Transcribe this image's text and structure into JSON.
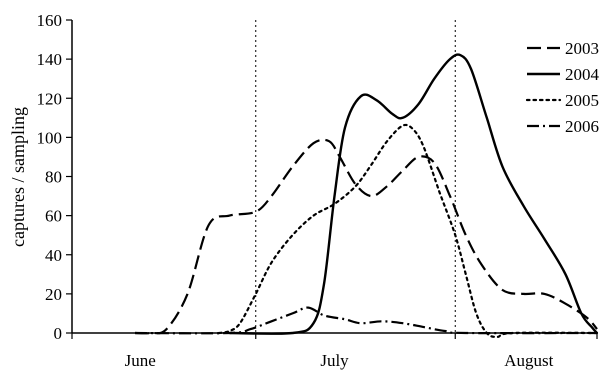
{
  "chart_data": {
    "type": "line",
    "title": "",
    "xlabel": "",
    "ylabel": "captures / sampling",
    "ylim": [
      0,
      160
    ],
    "yticks": [
      0,
      20,
      40,
      60,
      80,
      100,
      120,
      140,
      160
    ],
    "xlim": [
      0,
      100
    ],
    "month_labels": [
      {
        "label": "June",
        "x": 13
      },
      {
        "label": "July",
        "x": 50
      },
      {
        "label": "August",
        "x": 87
      }
    ],
    "month_dividers": [
      35,
      73
    ],
    "grid": false,
    "legend_position": "top-right",
    "series": [
      {
        "name": "2003",
        "style": "long-dash",
        "color": "#000000",
        "points": [
          [
            12,
            0
          ],
          [
            15,
            0
          ],
          [
            18,
            2
          ],
          [
            22,
            20
          ],
          [
            26,
            55
          ],
          [
            30,
            60
          ],
          [
            35,
            62
          ],
          [
            38,
            70
          ],
          [
            42,
            85
          ],
          [
            46,
            97
          ],
          [
            49,
            98
          ],
          [
            51,
            90
          ],
          [
            54,
            76
          ],
          [
            57,
            70
          ],
          [
            60,
            75
          ],
          [
            63,
            83
          ],
          [
            66,
            90
          ],
          [
            69,
            87
          ],
          [
            72,
            70
          ],
          [
            75,
            50
          ],
          [
            78,
            35
          ],
          [
            82,
            22
          ],
          [
            86,
            20
          ],
          [
            90,
            20
          ],
          [
            94,
            15
          ],
          [
            98,
            8
          ],
          [
            100,
            2
          ]
        ]
      },
      {
        "name": "2004",
        "style": "solid",
        "color": "#000000",
        "points": [
          [
            30,
            0
          ],
          [
            42,
            0
          ],
          [
            46,
            5
          ],
          [
            48,
            25
          ],
          [
            50,
            70
          ],
          [
            52,
            105
          ],
          [
            55,
            121
          ],
          [
            58,
            119
          ],
          [
            61,
            112
          ],
          [
            63,
            110
          ],
          [
            66,
            117
          ],
          [
            69,
            130
          ],
          [
            72,
            140
          ],
          [
            74,
            142
          ],
          [
            76,
            135
          ],
          [
            79,
            110
          ],
          [
            82,
            85
          ],
          [
            86,
            65
          ],
          [
            90,
            48
          ],
          [
            94,
            30
          ],
          [
            97,
            10
          ],
          [
            99,
            3
          ],
          [
            100,
            0
          ]
        ]
      },
      {
        "name": "2005",
        "style": "dotted",
        "color": "#000000",
        "points": [
          [
            28,
            0
          ],
          [
            30,
            1
          ],
          [
            32,
            5
          ],
          [
            35,
            20
          ],
          [
            38,
            36
          ],
          [
            42,
            50
          ],
          [
            46,
            60
          ],
          [
            50,
            66
          ],
          [
            54,
            75
          ],
          [
            57,
            86
          ],
          [
            60,
            98
          ],
          [
            63,
            106
          ],
          [
            65,
            104
          ],
          [
            67,
            95
          ],
          [
            70,
            72
          ],
          [
            73,
            50
          ],
          [
            75,
            30
          ],
          [
            77,
            10
          ],
          [
            79,
            0
          ],
          [
            81,
            -2
          ],
          [
            84,
            0
          ],
          [
            100,
            0
          ]
        ]
      },
      {
        "name": "2006",
        "style": "dash-dot",
        "color": "#000000",
        "points": [
          [
            12,
            0
          ],
          [
            30,
            0
          ],
          [
            34,
            2
          ],
          [
            38,
            6
          ],
          [
            42,
            10
          ],
          [
            45,
            13
          ],
          [
            48,
            9
          ],
          [
            52,
            7
          ],
          [
            55,
            5
          ],
          [
            59,
            6
          ],
          [
            63,
            5
          ],
          [
            67,
            3
          ],
          [
            71,
            1
          ],
          [
            75,
            0
          ],
          [
            100,
            0
          ]
        ]
      }
    ]
  },
  "colors": {
    "background": "#ffffff",
    "ink": "#000000"
  }
}
